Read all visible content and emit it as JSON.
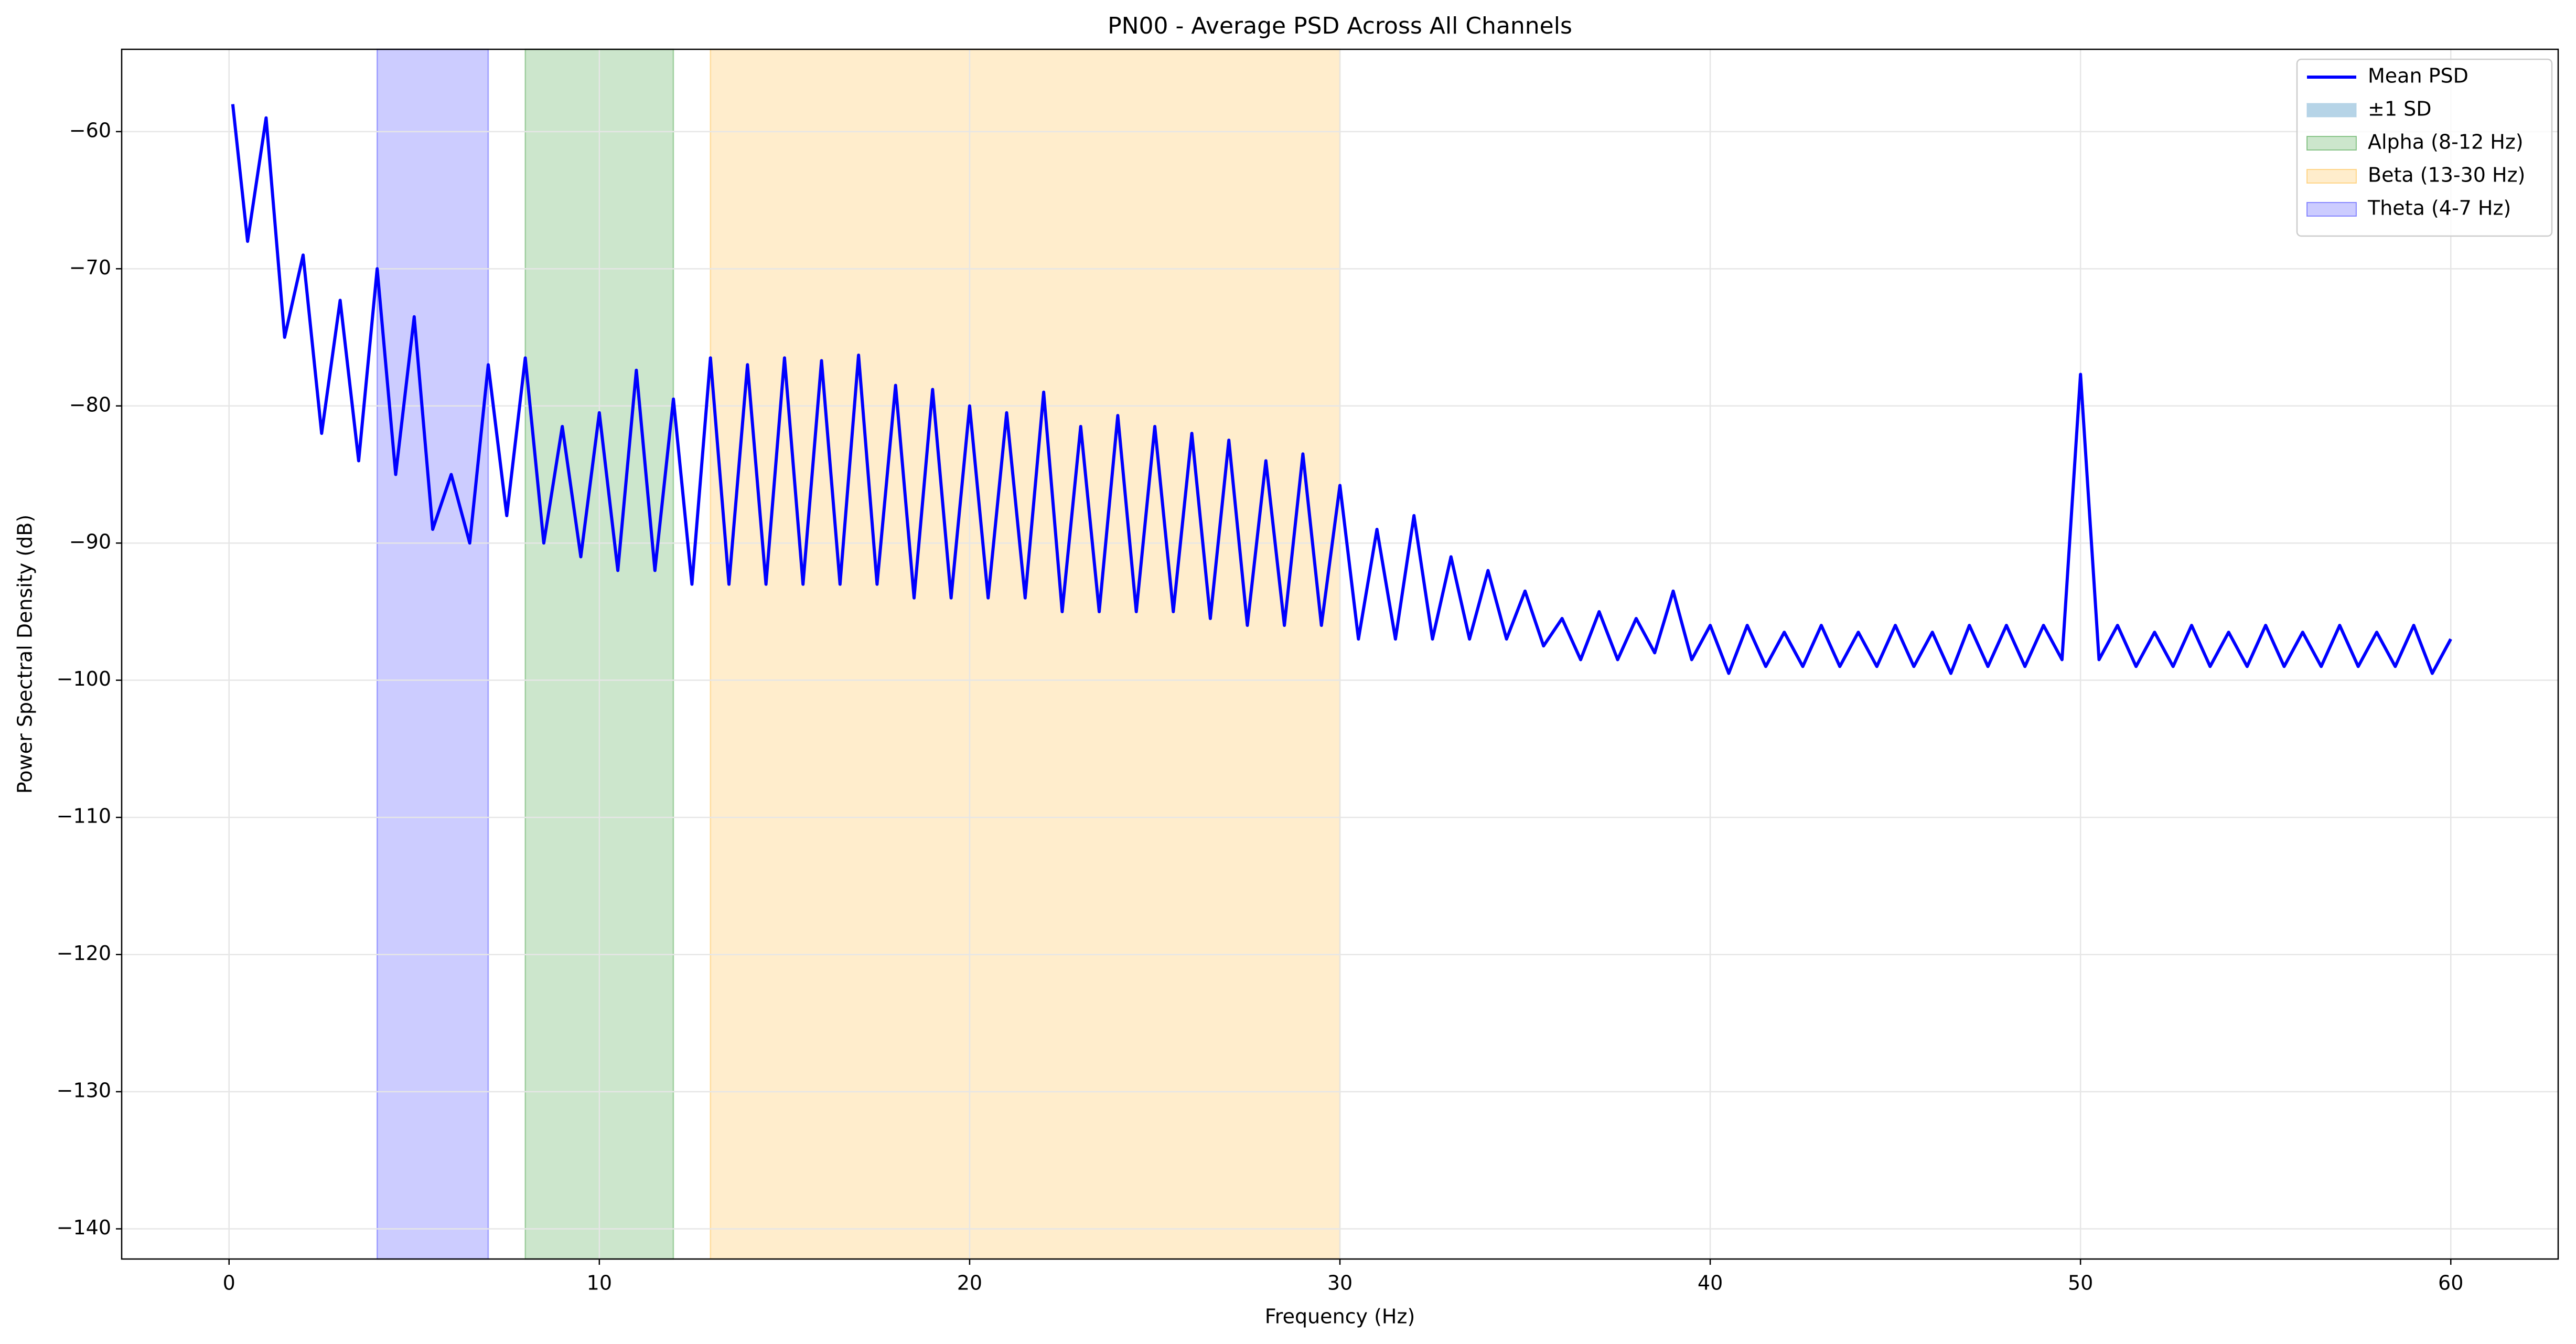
{
  "chart_data": {
    "type": "line",
    "title": "PN00 - Average PSD Across All Channels",
    "x_label": "Frequency (Hz)",
    "y_label": "Power Spectral Density (dB)",
    "x": [
      0.1,
      0.5,
      1,
      1.5,
      2,
      2.5,
      3,
      3.5,
      4,
      4.5,
      5,
      5.5,
      6,
      6.5,
      7,
      7.5,
      8,
      8.5,
      9,
      9.5,
      10,
      10.5,
      11,
      11.5,
      12,
      12.5,
      13,
      13.5,
      14,
      14.5,
      15,
      15.5,
      16,
      16.5,
      17,
      17.5,
      18,
      18.5,
      19,
      19.5,
      20,
      20.5,
      21,
      21.5,
      22,
      22.5,
      23,
      23.5,
      24,
      24.5,
      25,
      25.5,
      26,
      26.5,
      27,
      27.5,
      28,
      28.5,
      29,
      29.5,
      30,
      30.5,
      31,
      31.5,
      32,
      32.5,
      33,
      33.5,
      34,
      34.5,
      35,
      35.5,
      36,
      36.5,
      37,
      37.5,
      38,
      38.5,
      39,
      39.5,
      40,
      40.5,
      41,
      41.5,
      42,
      42.5,
      43,
      43.5,
      44,
      44.5,
      45,
      45.5,
      46,
      46.5,
      47,
      47.5,
      48,
      48.5,
      49,
      49.5,
      50,
      50.5,
      51,
      51.5,
      52,
      52.5,
      53,
      53.5,
      54,
      54.5,
      55,
      55.5,
      56,
      56.5,
      57,
      57.5,
      58,
      58.5,
      59,
      59.5,
      60
    ],
    "series": [
      {
        "name": "Mean PSD",
        "color": "#0000ff",
        "values": [
          -58,
          -68,
          -59,
          -75,
          -69,
          -82,
          -72.3,
          -84,
          -70,
          -85,
          -73.5,
          -89,
          -85,
          -90,
          -77,
          -88,
          -76.5,
          -90,
          -81.5,
          -91,
          -80.5,
          -92,
          -77.4,
          -92,
          -79.5,
          -93,
          -76.5,
          -93,
          -77,
          -93,
          -76.5,
          -93,
          -76.7,
          -93,
          -76.3,
          -93,
          -78.5,
          -94,
          -78.8,
          -94,
          -80,
          -94,
          -80.5,
          -94,
          -79,
          -95,
          -81.5,
          -95,
          -80.7,
          -95,
          -81.5,
          -95,
          -82,
          -95.5,
          -82.5,
          -96,
          -84,
          -96,
          -83.5,
          -96,
          -85.8,
          -97,
          -89,
          -97,
          -88,
          -97,
          -91,
          -97,
          -92,
          -97,
          -93.5,
          -97.5,
          -95.5,
          -98.5,
          -95,
          -98.5,
          -95.5,
          -98,
          -93.5,
          -98.5,
          -96,
          -99.5,
          -96,
          -99,
          -96.5,
          -99,
          -96,
          -99,
          -96.5,
          -99,
          -96,
          -99,
          -96.5,
          -99.5,
          -96,
          -99,
          -96,
          -99,
          -96,
          -98.5,
          -77.7,
          -98.5,
          -96,
          -99,
          -96.5,
          -99,
          -96,
          -99,
          -96.5,
          -99,
          -96,
          -99,
          -96.5,
          -99,
          -96,
          -99,
          -96.5,
          -99,
          -96,
          -99.5,
          -97
        ]
      }
    ],
    "sd_band": {
      "name": "±1 SD",
      "color": "#a9cce3"
    },
    "bands": [
      {
        "name": "Alpha (8-12 Hz)",
        "range": [
          8,
          12
        ],
        "color": "#008000"
      },
      {
        "name": "Beta (13-30 Hz)",
        "range": [
          13,
          30
        ],
        "color": "#ffa500"
      },
      {
        "name": "Theta (4-7 Hz)",
        "range": [
          4,
          7
        ],
        "color": "#0000ff"
      }
    ],
    "xlim": [
      -2.9,
      62.9
    ],
    "ylim": [
      -142.2,
      -54.0
    ],
    "xticks": [
      0,
      10,
      20,
      30,
      40,
      50,
      60
    ],
    "yticks": [
      {
        "value": -60,
        "label": "−60"
      },
      {
        "value": -70,
        "label": "−70"
      },
      {
        "value": -80,
        "label": "−80"
      },
      {
        "value": -90,
        "label": "−90"
      },
      {
        "value": -100,
        "label": "−100"
      },
      {
        "value": -110,
        "label": "−110"
      },
      {
        "value": -120,
        "label": "−120"
      },
      {
        "value": -130,
        "label": "−130"
      },
      {
        "value": -140,
        "label": "−140"
      }
    ],
    "grid": true,
    "legend_position": "upper right"
  }
}
